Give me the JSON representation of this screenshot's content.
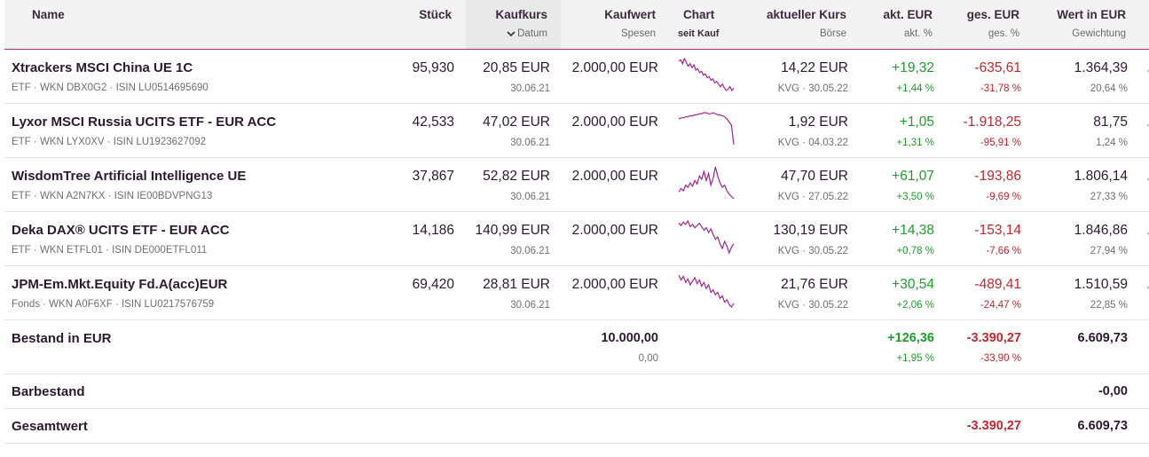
{
  "columns": {
    "name": "Name",
    "stueck": "Stück",
    "kaufkurs": "Kaufkurs",
    "datum": "Datum",
    "kaufwert": "Kaufwert",
    "spesen": "Spesen",
    "chart": "Chart",
    "seit_kauf": "seit Kauf",
    "aktueller_kurs": "aktueller Kurs",
    "boerse": "Börse",
    "akt_eur": "akt. EUR",
    "akt_pct": "akt. %",
    "ges_eur": "ges. EUR",
    "ges_pct": "ges. %",
    "wert": "Wert in EUR",
    "gewichtung": "Gewichtung"
  },
  "rows": [
    {
      "name": "Xtrackers MSCI China UE 1C",
      "meta": "ETF · WKN DBX0G2 · ISIN LU0514695690",
      "stueck": "95,930",
      "kaufkurs": "20,85 EUR",
      "datum": "30.06.21",
      "kaufwert": "2.000,00 EUR",
      "kurs": "14,22 EUR",
      "boerse": "KVG · 30.05.22",
      "akt_eur": "+19,32",
      "akt_pct": "+1,44 %",
      "ges_eur": "-635,61",
      "ges_pct": "-31,78 %",
      "wert": "1.364,39",
      "gewichtung": "20,64 %",
      "spark": [
        20,
        19,
        22,
        18,
        21,
        24,
        22,
        25,
        23,
        27,
        26,
        29,
        28,
        31,
        30,
        33,
        32,
        35,
        34,
        37,
        36,
        38,
        40,
        38,
        41,
        43,
        42,
        40,
        43,
        41
      ]
    },
    {
      "name": "Lyxor MSCI Russia UCITS ETF - EUR ACC",
      "meta": "ETF · WKN LYX0XV · ISIN LU1923627092",
      "stueck": "42,533",
      "kaufkurs": "47,02 EUR",
      "datum": "30.06.21",
      "kaufwert": "2.000,00 EUR",
      "kurs": "1,92 EUR",
      "boerse": "KVG · 04.03.22",
      "akt_eur": "+1,05",
      "akt_pct": "+1,31 %",
      "ges_eur": "-1.918,25",
      "ges_pct": "-95,91 %",
      "wert": "81,75",
      "gewichtung": "1,24 %",
      "spark": [
        20,
        19,
        19,
        18,
        18,
        17,
        17,
        16,
        16,
        15,
        15,
        14,
        14,
        15,
        15,
        14,
        15,
        16,
        16,
        17,
        18,
        20,
        23,
        26,
        45
      ]
    },
    {
      "name": "WisdomTree Artificial Intelligence UE",
      "meta": "ETF · WKN A2N7KX · ISIN IE00BDVPNG13",
      "stueck": "37,867",
      "kaufkurs": "52,82 EUR",
      "datum": "30.06.21",
      "kaufwert": "2.000,00 EUR",
      "kurs": "47,70 EUR",
      "boerse": "KVG · 27.05.22",
      "akt_eur": "+61,07",
      "akt_pct": "+3,50 %",
      "ges_eur": "-193,86",
      "ges_pct": "-9,69 %",
      "wert": "1.806,14",
      "gewichtung": "27,33 %",
      "spark": [
        34,
        31,
        33,
        28,
        30,
        26,
        29,
        24,
        27,
        20,
        23,
        16,
        24,
        18,
        28,
        22,
        12,
        20,
        26,
        30,
        28,
        33,
        36,
        38,
        40
      ]
    },
    {
      "name": "Deka DAX® UCITS ETF - EUR ACC",
      "meta": "ETF · WKN ETFL01 · ISIN DE000ETFL011",
      "stueck": "14,186",
      "kaufkurs": "140,99 EUR",
      "datum": "30.06.21",
      "kaufwert": "2.000,00 EUR",
      "kurs": "130,19 EUR",
      "boerse": "KVG · 30.05.22",
      "akt_eur": "+14,38",
      "akt_pct": "+0,78 %",
      "ges_eur": "-153,14",
      "ges_pct": "-7,66 %",
      "wert": "1.846,86",
      "gewichtung": "27,94 %",
      "spark": [
        12,
        14,
        11,
        13,
        10,
        15,
        13,
        16,
        14,
        12,
        15,
        18,
        16,
        20,
        17,
        22,
        26,
        24,
        30,
        34,
        28,
        32,
        38,
        33,
        30
      ]
    },
    {
      "name": "JPM-Em.Mkt.Equity Fd.A(acc)EUR",
      "meta": "Fonds · WKN A0F6XF · ISIN LU0217576759",
      "stueck": "69,420",
      "kaufkurs": "28,81 EUR",
      "datum": "30.06.21",
      "kaufwert": "2.000,00 EUR",
      "kurs": "21,76 EUR",
      "boerse": "KVG · 30.05.22",
      "akt_eur": "+30,54",
      "akt_pct": "+2,06 %",
      "ges_eur": "-489,41",
      "ges_pct": "-24,47 %",
      "wert": "1.510,59",
      "gewichtung": "22,85 %",
      "spark": [
        12,
        16,
        13,
        18,
        15,
        20,
        17,
        14,
        19,
        16,
        21,
        18,
        23,
        20,
        26,
        24,
        28,
        26,
        31,
        29,
        34,
        32,
        36,
        38,
        35
      ]
    }
  ],
  "bestand": {
    "label": "Bestand in EUR",
    "kaufwert": "10.000,00",
    "spesen": "0,00",
    "akt_eur": "+126,36",
    "akt_pct": "+1,95 %",
    "ges_eur": "-3.390,27",
    "ges_pct": "-33,90 %",
    "wert": "6.609,73"
  },
  "barbestand": {
    "label": "Barbestand",
    "wert": "-0,00"
  },
  "gesamtwert": {
    "label": "Gesamtwert",
    "ges_eur": "-3.390,27",
    "wert": "6.609,73"
  },
  "colors": {
    "accent": "#a0306e",
    "sparkline": "#a3238e",
    "positive": "#1f9d2a",
    "negative": "#c3272f"
  },
  "icons": {
    "sort": "chevron-down-icon",
    "row_expand": "chevron-down-icon"
  }
}
